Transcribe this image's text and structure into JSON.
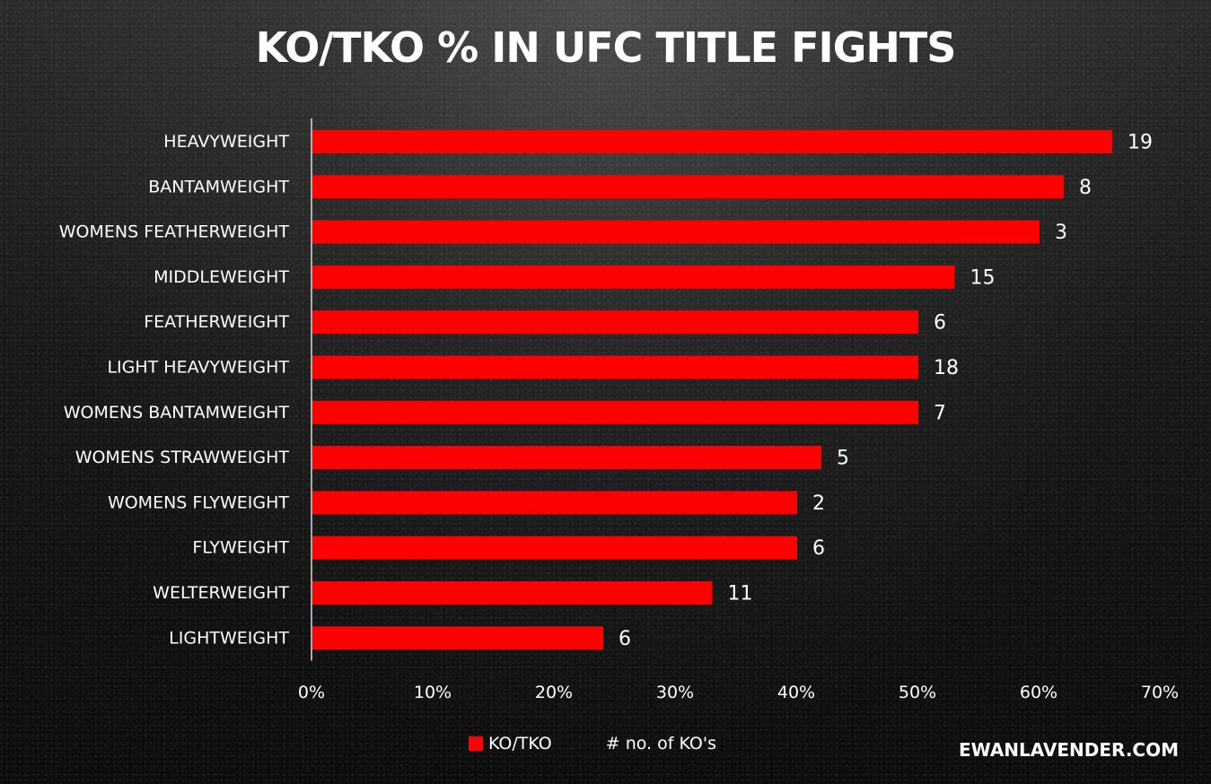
{
  "title": "KO/TKO % IN UFC TITLE FIGHTS",
  "watermark": "EWANLAVENDER.COM",
  "legend": {
    "series_label": "KO/TKO",
    "secondary_label": "# no. of KO's"
  },
  "colors": {
    "bar": "#ff0000",
    "text": "#ffffff",
    "axis": "#d9d9d9"
  },
  "chart_data": {
    "type": "bar",
    "orientation": "horizontal",
    "title": "KO/TKO % IN UFC TITLE FIGHTS",
    "categories": [
      "HEAVYWEIGHT",
      "BANTAMWEIGHT",
      "WOMENS FEATHERWEIGHT",
      "MIDDLEWEIGHT",
      "FEATHERWEIGHT",
      "LIGHT HEAVYWEIGHT",
      "WOMENS BANTAMWEIGHT",
      "WOMENS STRAWWEIGHT",
      "WOMENS FLYWEIGHT",
      "FLYWEIGHT",
      "WELTERWEIGHT",
      "LIGHTWEIGHT"
    ],
    "series": [
      {
        "name": "KO/TKO",
        "values": [
          66,
          62,
          60,
          53,
          50,
          50,
          50,
          42,
          40,
          40,
          33,
          24
        ]
      }
    ],
    "data_labels": [
      "19",
      "8",
      "3",
      "15",
      "6",
      "18",
      "7",
      "5",
      "2",
      "6",
      "11",
      "6"
    ],
    "xlim": [
      0,
      70
    ],
    "x_ticks": [
      "0%",
      "10%",
      "20%",
      "30%",
      "40%",
      "50%",
      "60%",
      "70%"
    ],
    "grid": false,
    "legend_position": "bottom"
  }
}
